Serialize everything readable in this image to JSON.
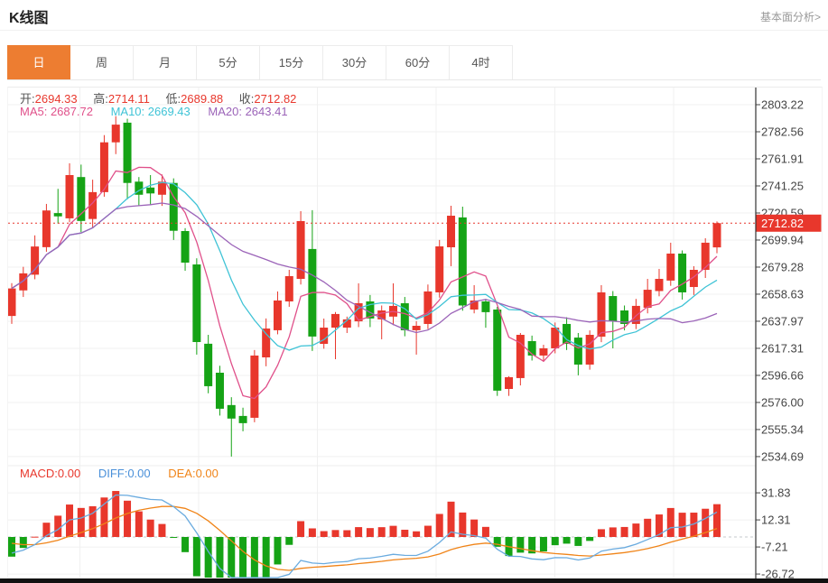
{
  "header": {
    "title": "K线图",
    "link": "基本面分析>"
  },
  "tabs": {
    "items": [
      {
        "label": "日",
        "active": true
      },
      {
        "label": "周",
        "active": false
      },
      {
        "label": "月",
        "active": false
      },
      {
        "label": "5分",
        "active": false
      },
      {
        "label": "15分",
        "active": false
      },
      {
        "label": "30分",
        "active": false
      },
      {
        "label": "60分",
        "active": false
      },
      {
        "label": "4时",
        "active": false
      }
    ]
  },
  "legend": {
    "ohlc": [
      {
        "label": "开:",
        "value": "2694.33"
      },
      {
        "label": "高:",
        "value": "2714.11"
      },
      {
        "label": "低:",
        "value": "2689.88"
      },
      {
        "label": "收:",
        "value": "2712.82"
      }
    ],
    "ma": [
      {
        "label": "MA5: 2687.72",
        "color": "#e0508a"
      },
      {
        "label": "MA10: 2669.43",
        "color": "#3fc3d6"
      },
      {
        "label": "MA20: 2643.41",
        "color": "#9b63b8"
      }
    ],
    "macd": [
      {
        "label": "MACD:0.00",
        "color": "#e8372c"
      },
      {
        "label": "DIFF:0.00",
        "color": "#4a90d9"
      },
      {
        "label": "DEA:0.00",
        "color": "#f08418"
      }
    ]
  },
  "chart_data": {
    "type": "candlestick",
    "title": "K线图",
    "interval_selected": "日",
    "last_price": 2712.82,
    "price_axis_ticks": [
      2803.22,
      2782.56,
      2761.91,
      2741.25,
      2720.59,
      2699.94,
      2679.28,
      2658.63,
      2637.97,
      2617.31,
      2596.66,
      2576.0,
      2555.34,
      2534.69
    ],
    "macd_axis_ticks": [
      31.83,
      12.31,
      -7.21,
      -26.72
    ],
    "ohlc_today": {
      "open": 2694.33,
      "high": 2714.11,
      "low": 2689.88,
      "close": 2712.82
    },
    "ma_values": {
      "MA5": 2687.72,
      "MA10": 2669.43,
      "MA20": 2643.41
    },
    "macd_values": {
      "MACD": 0.0,
      "DIFF": 0.0,
      "DEA": 0.0
    },
    "ma_periods": [
      5,
      10,
      20
    ],
    "grid": true,
    "legend_position": "top-left",
    "candles_ohlc_hi_lo": [
      [
        2642.0,
        2667.0,
        2636.0,
        2663.0
      ],
      [
        2661.5,
        2679.5,
        2656.5,
        2674.5
      ],
      [
        2673.5,
        2703.5,
        2670.0,
        2695.0
      ],
      [
        2694.5,
        2727.5,
        2691.0,
        2722.5
      ],
      [
        2720.5,
        2739.0,
        2712.5,
        2718.0
      ],
      [
        2716.5,
        2758.5,
        2713.5,
        2749.5
      ],
      [
        2748.0,
        2757.5,
        2706.0,
        2714.5
      ],
      [
        2716.0,
        2746.0,
        2709.0,
        2736.5
      ],
      [
        2736.5,
        2780.0,
        2733.0,
        2774.5
      ],
      [
        2774.5,
        2794.5,
        2765.5,
        2788.0
      ],
      [
        2789.5,
        2792.5,
        2731.0,
        2743.5
      ],
      [
        2744.5,
        2748.0,
        2726.0,
        2734.5
      ],
      [
        2740.0,
        2749.5,
        2726.5,
        2735.5
      ],
      [
        2734.5,
        2750.0,
        2726.0,
        2744.5
      ],
      [
        2743.5,
        2747.0,
        2700.0,
        2707.0
      ],
      [
        2706.8,
        2709.0,
        2676.5,
        2682.7
      ],
      [
        2681.3,
        2686.0,
        2612.5,
        2622.1
      ],
      [
        2620.8,
        2627.6,
        2583.0,
        2588.4
      ],
      [
        2598.7,
        2604.0,
        2566.0,
        2571.2
      ],
      [
        2574.0,
        2580.0,
        2534.7,
        2563.7
      ],
      [
        2565.7,
        2572.0,
        2554.0,
        2560.2
      ],
      [
        2564.3,
        2616.0,
        2560.9,
        2611.8
      ],
      [
        2610.4,
        2640.1,
        2603.6,
        2632.4
      ],
      [
        2631.1,
        2660.7,
        2628.0,
        2653.8
      ],
      [
        2653.1,
        2677.2,
        2649.0,
        2672.4
      ],
      [
        2670.3,
        2722.0,
        2666.0,
        2714.4
      ],
      [
        2693.1,
        2722.7,
        2615.3,
        2626.3
      ],
      [
        2620.7,
        2640.0,
        2617.0,
        2633.1
      ],
      [
        2633.1,
        2645.0,
        2609.0,
        2643.5
      ],
      [
        2633.1,
        2641.5,
        2629.0,
        2639.4
      ],
      [
        2637.9,
        2666.9,
        2633.5,
        2651.7
      ],
      [
        2653.1,
        2658.0,
        2633.5,
        2640.1
      ],
      [
        2639.4,
        2650.0,
        2624.2,
        2646.2
      ],
      [
        2641.5,
        2666.9,
        2635.0,
        2649.7
      ],
      [
        2651.7,
        2656.5,
        2626.5,
        2631.1
      ],
      [
        2631.1,
        2638.0,
        2612.5,
        2634.5
      ],
      [
        2635.9,
        2666.0,
        2632.0,
        2660.7
      ],
      [
        2660.0,
        2700.0,
        2656.0,
        2695.1
      ],
      [
        2694.4,
        2726.1,
        2680.0,
        2718.5
      ],
      [
        2717.2,
        2725.4,
        2646.0,
        2650.0
      ],
      [
        2646.9,
        2665.5,
        2644.0,
        2653.8
      ],
      [
        2653.1,
        2655.0,
        2633.0,
        2644.9
      ],
      [
        2646.9,
        2649.0,
        2581.0,
        2585.0
      ],
      [
        2586.3,
        2596.0,
        2581.0,
        2595.3
      ],
      [
        2594.6,
        2629.0,
        2589.0,
        2627.6
      ],
      [
        2622.8,
        2627.0,
        2608.0,
        2611.8
      ],
      [
        2611.8,
        2620.0,
        2607.0,
        2617.3
      ],
      [
        2617.3,
        2637.0,
        2613.5,
        2633.1
      ],
      [
        2635.9,
        2641.0,
        2616.0,
        2620.7
      ],
      [
        2625.5,
        2629.0,
        2596.7,
        2604.9
      ],
      [
        2604.9,
        2631.0,
        2601.0,
        2627.6
      ],
      [
        2626.2,
        2665.5,
        2622.0,
        2660.0
      ],
      [
        2657.2,
        2661.0,
        2617.3,
        2637.9
      ],
      [
        2646.2,
        2650.0,
        2631.0,
        2635.9
      ],
      [
        2635.9,
        2655.0,
        2632.0,
        2649.7
      ],
      [
        2648.3,
        2670.3,
        2644.0,
        2662.0
      ],
      [
        2661.0,
        2677.9,
        2657.0,
        2670.3
      ],
      [
        2669.0,
        2697.9,
        2665.0,
        2689.6
      ],
      [
        2689.6,
        2692.0,
        2654.5,
        2660.0
      ],
      [
        2664.1,
        2680.0,
        2658.0,
        2677.2
      ],
      [
        2677.2,
        2701.3,
        2671.0,
        2697.9
      ],
      [
        2694.33,
        2714.11,
        2689.88,
        2712.82
      ]
    ],
    "colors": {
      "up": "#e8372c",
      "down": "#15a315",
      "ma5": "#e0508a",
      "ma10": "#3fc3d6",
      "ma20": "#9b63b8",
      "diff_line": "#6aabdf",
      "dea_line": "#f08418",
      "last_price_line": "#e8372c",
      "grid": "#f0f0f0",
      "axis": "#333333",
      "tick_text": "#444444",
      "tab_active_bg": "#ed7d31"
    }
  }
}
